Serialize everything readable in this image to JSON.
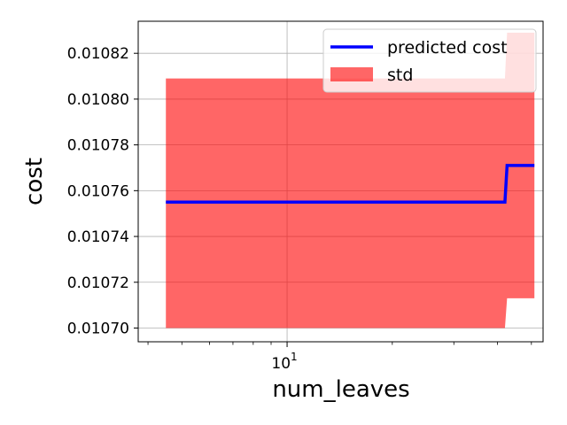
{
  "chart_data": {
    "type": "line",
    "xlabel": "num_leaves",
    "ylabel": "cost",
    "xscale": "log",
    "xlim": [
      3.75,
      54
    ],
    "ylim": [
      0.010694,
      0.010834
    ],
    "grid": true,
    "legend_placement": "top-right",
    "x_tick_labels": [
      {
        "value": 10,
        "base": "10",
        "exp": "1"
      }
    ],
    "y_ticks": [
      0.0107,
      0.01072,
      0.01074,
      0.01076,
      0.01078,
      0.0108,
      0.01082
    ],
    "y_tick_labels": [
      "0.01070",
      "0.01072",
      "0.01074",
      "0.01076",
      "0.01078",
      "0.01080",
      "0.01082"
    ],
    "series": [
      {
        "name": "predicted cost",
        "kind": "line",
        "color": "#0000ff",
        "x": [
          4.5,
          42.0,
          42.6,
          51.0
        ],
        "y": [
          0.010755,
          0.010755,
          0.010771,
          0.010771
        ]
      },
      {
        "name": "std",
        "kind": "band",
        "color": "#ff0000",
        "opacity": 0.6,
        "x": [
          4.5,
          42.0,
          42.6,
          51.0
        ],
        "lower": [
          0.0107,
          0.0107,
          0.010713,
          0.010713
        ],
        "upper": [
          0.010809,
          0.010809,
          0.010829,
          0.010829
        ]
      }
    ]
  }
}
